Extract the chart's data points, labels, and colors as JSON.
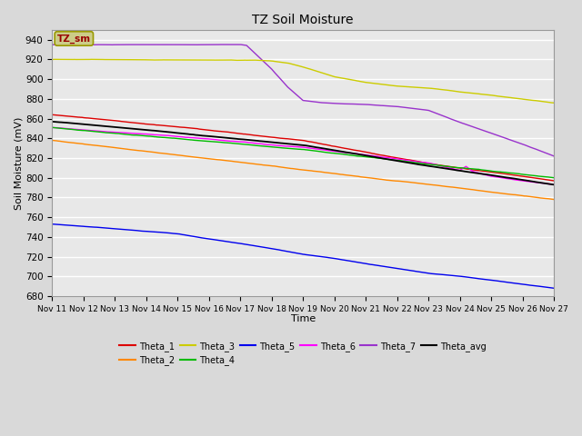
{
  "title": "TZ Soil Moisture",
  "xlabel": "Time",
  "ylabel": "Soil Moisture (mV)",
  "ylim": [
    680,
    950
  ],
  "yticks": [
    680,
    700,
    720,
    740,
    760,
    780,
    800,
    820,
    840,
    860,
    880,
    900,
    920,
    940
  ],
  "x_days": [
    "Nov 11",
    "Nov 12",
    "Nov 13",
    "Nov 14",
    "Nov 15",
    "Nov 16",
    "Nov 17",
    "Nov 18",
    "Nov 19",
    "Nov 20",
    "Nov 21",
    "Nov 22",
    "Nov 23",
    "Nov 24",
    "Nov 25",
    "Nov 26",
    "Nov 27"
  ],
  "background_color": "#d9d9d9",
  "plot_bg_color": "#e8e8e8",
  "series": {
    "Theta_1": {
      "color": "#dd0000"
    },
    "Theta_2": {
      "color": "#ff8800"
    },
    "Theta_3": {
      "color": "#cccc00"
    },
    "Theta_4": {
      "color": "#00bb00"
    },
    "Theta_5": {
      "color": "#0000ee"
    },
    "Theta_6": {
      "color": "#ff00ff"
    },
    "Theta_7": {
      "color": "#9933cc"
    },
    "Theta_avg": {
      "color": "#000000"
    }
  },
  "legend_label": "TZ_sm",
  "legend_box_facecolor": "#cccc88",
  "legend_text_color": "#990000"
}
